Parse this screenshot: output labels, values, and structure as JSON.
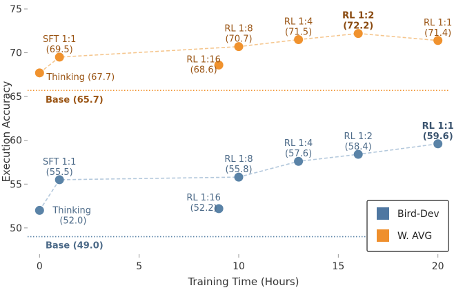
{
  "chart_data": {
    "type": "scatter",
    "xlabel": "Training Time (Hours)",
    "ylabel": "Execution Accuracy",
    "xlim": [
      -0.6,
      20.6
    ],
    "ylim": [
      47.0,
      75.0
    ],
    "xticks": [
      0,
      5,
      10,
      15,
      20
    ],
    "yticks": [
      50,
      55,
      60,
      65,
      70,
      75
    ],
    "grid": false,
    "legend_position": "bottom-right",
    "series": [
      {
        "name": "W. AVG",
        "color": "#f0922e",
        "line_color": "#f5c68e",
        "label_color": "#9a5413",
        "points": [
          {
            "x": 0,
            "y": 67.7,
            "label_line1": "Thinking (67.7)",
            "label_line2": "",
            "bold": false
          },
          {
            "x": 1,
            "y": 69.5,
            "label_line1": "SFT 1:1",
            "label_line2": "(69.5)",
            "bold": false
          },
          {
            "x": 9,
            "y": 68.6,
            "label_line1": "RL 1:16",
            "label_line2": "(68.6)",
            "bold": false
          },
          {
            "x": 10,
            "y": 70.7,
            "label_line1": "RL 1:8",
            "label_line2": "(70.7)",
            "bold": false
          },
          {
            "x": 13,
            "y": 71.5,
            "label_line1": "RL 1:4",
            "label_line2": "(71.5)",
            "bold": false
          },
          {
            "x": 16,
            "y": 72.2,
            "label_line1": "RL 1:2",
            "label_line2": "(72.2)",
            "bold": true
          },
          {
            "x": 20,
            "y": 71.4,
            "label_line1": "RL 1:1",
            "label_line2": "(71.4)",
            "bold": false
          }
        ],
        "connect_order": [
          0,
          1,
          3,
          4,
          5,
          6
        ],
        "baseline": {
          "value": 65.7,
          "label": "Base (65.7)"
        }
      },
      {
        "name": "Bird-Dev",
        "color": "#5a83a7",
        "line_color": "#b3c8dc",
        "label_color": "#4c6a88",
        "points": [
          {
            "x": 0,
            "y": 52.0,
            "label_line1": "Thinking",
            "label_line2": "(52.0)",
            "bold": false
          },
          {
            "x": 1,
            "y": 55.5,
            "label_line1": "SFT 1:1",
            "label_line2": "(55.5)",
            "bold": false
          },
          {
            "x": 9,
            "y": 52.2,
            "label_line1": "RL 1:16",
            "label_line2": "(52.2)",
            "bold": false
          },
          {
            "x": 10,
            "y": 55.8,
            "label_line1": "RL 1:8",
            "label_line2": "(55.8)",
            "bold": false
          },
          {
            "x": 13,
            "y": 57.6,
            "label_line1": "RL 1:4",
            "label_line2": "(57.6)",
            "bold": false
          },
          {
            "x": 16,
            "y": 58.4,
            "label_line1": "RL 1:2",
            "label_line2": "(58.4)",
            "bold": false
          },
          {
            "x": 20,
            "y": 59.6,
            "label_line1": "RL 1:1",
            "label_line2": "(59.6)",
            "bold": true
          }
        ],
        "connect_order": [
          0,
          1,
          3,
          4,
          5,
          6
        ],
        "baseline": {
          "value": 49.0,
          "label": "Base (49.0)"
        }
      }
    ],
    "legend": [
      {
        "name": "Bird-Dev",
        "color": "#4f77a1"
      },
      {
        "name": "W. AVG",
        "color": "#ef8f2c"
      }
    ]
  }
}
